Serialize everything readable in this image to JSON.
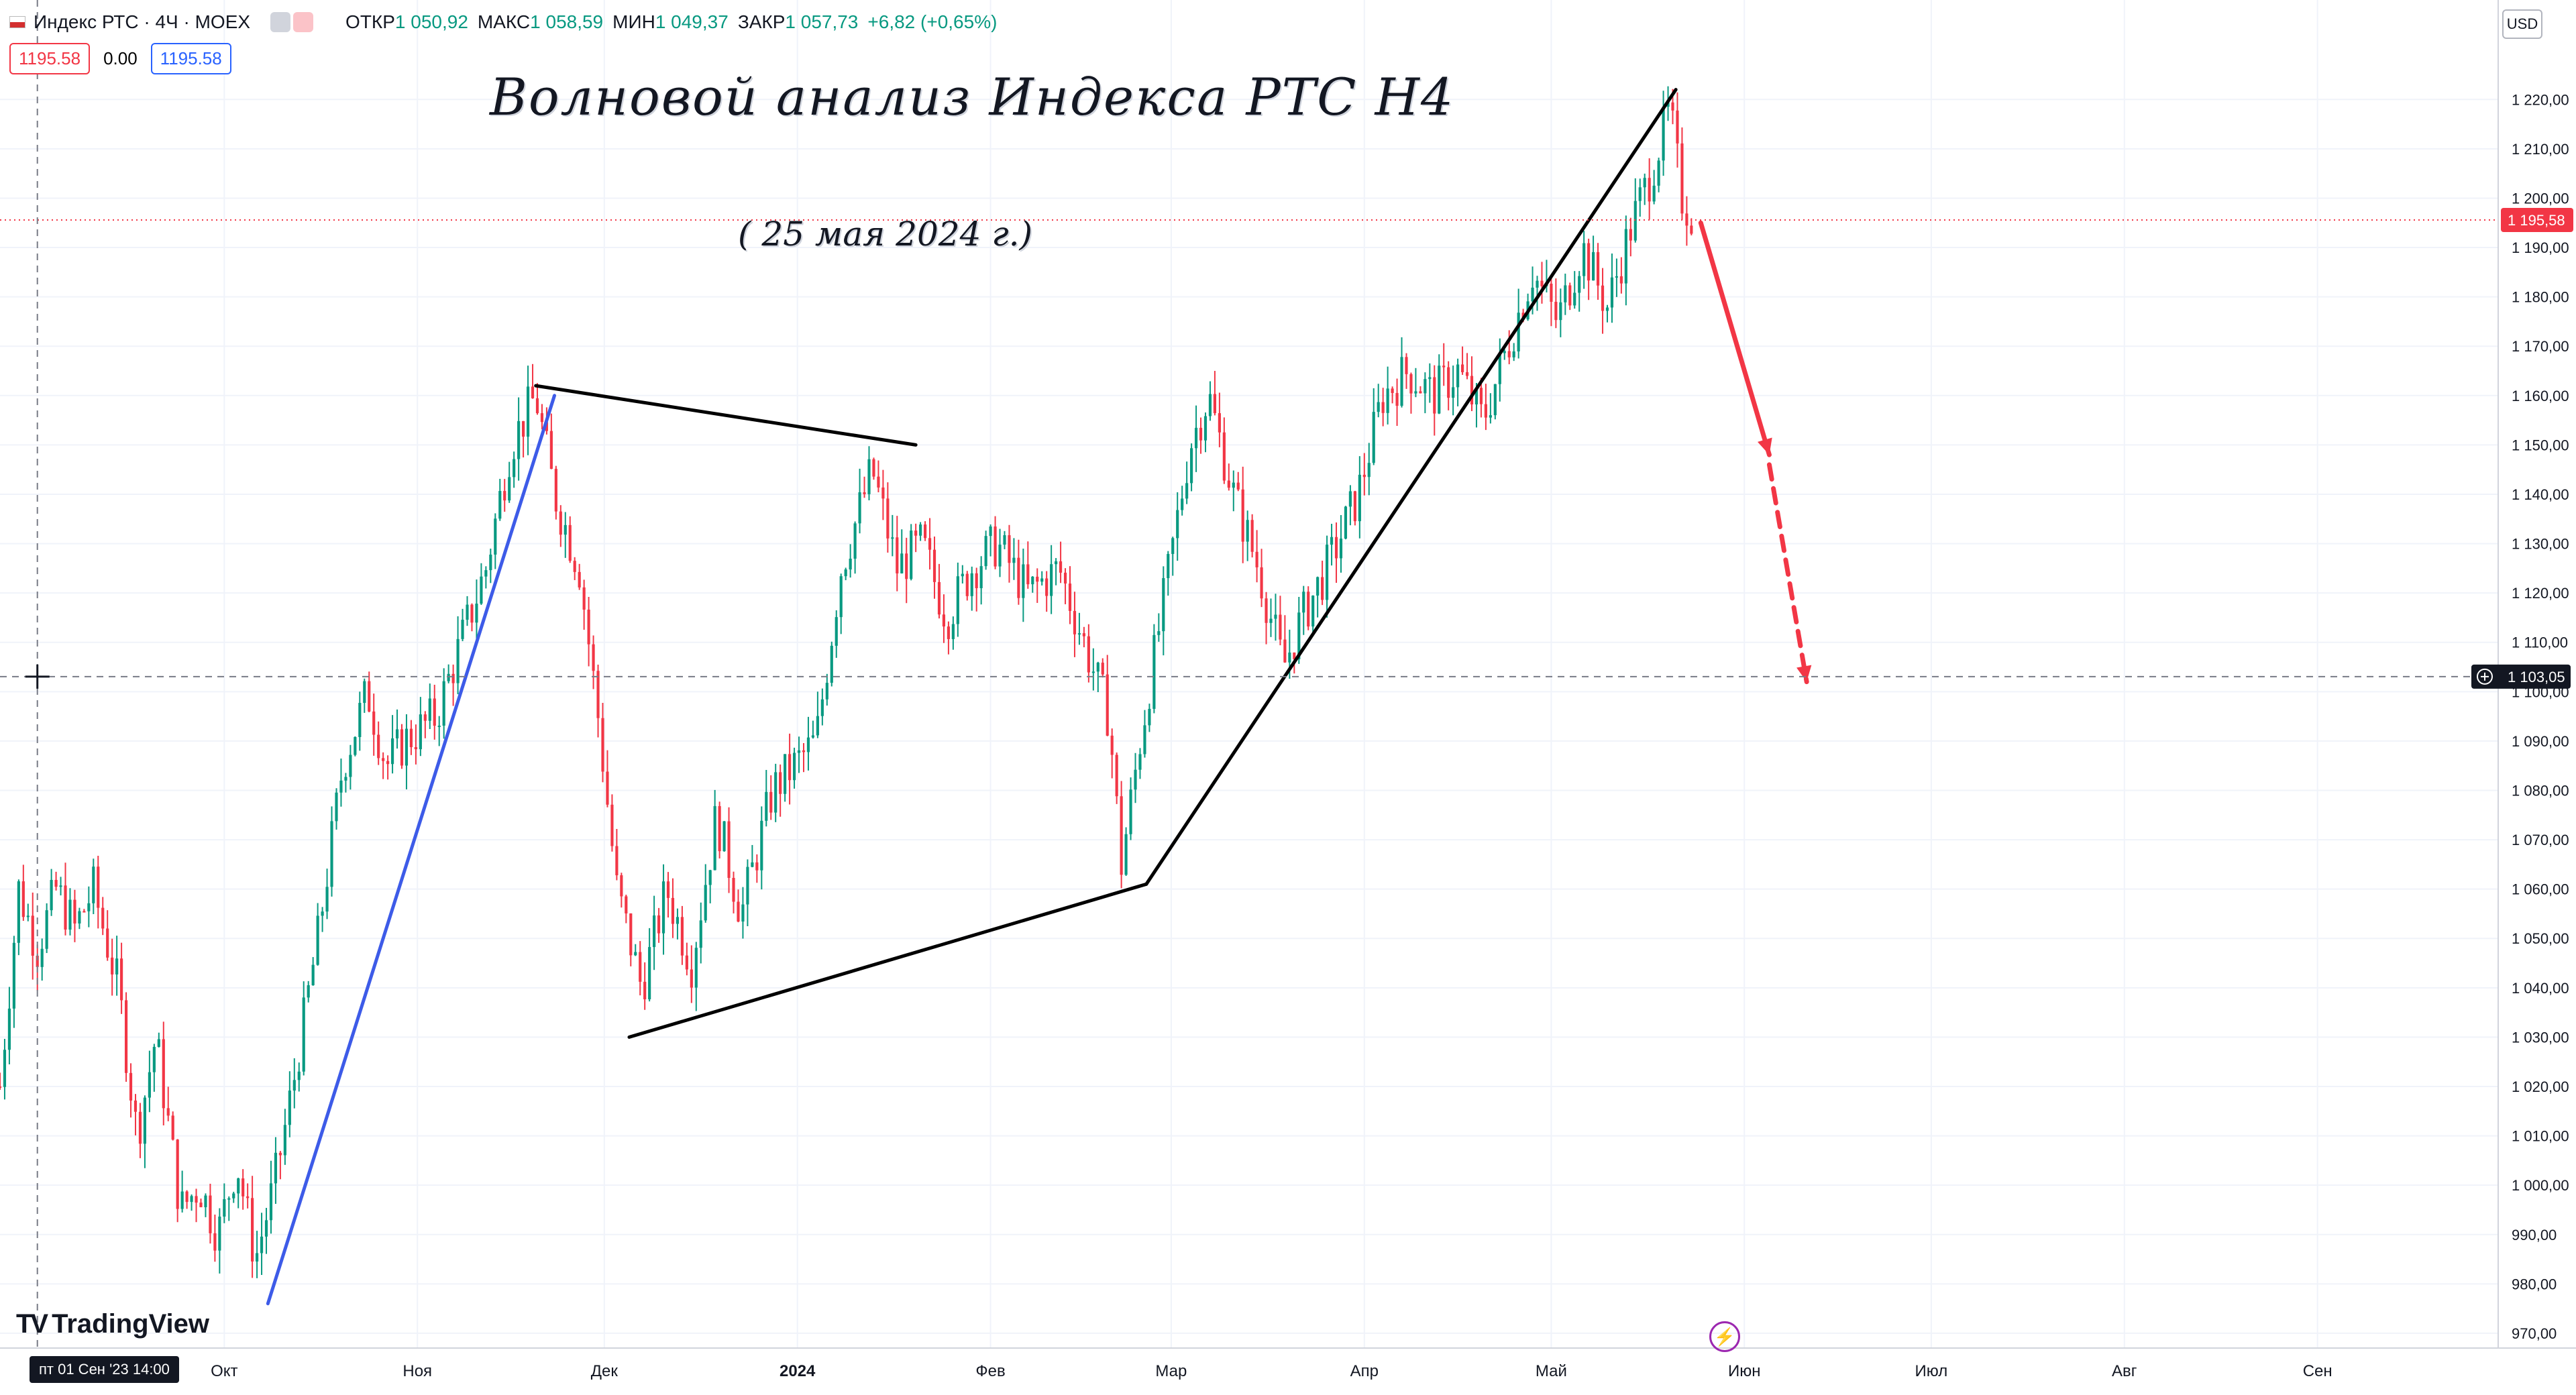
{
  "header": {
    "symbol": "Индекс РТС · 4Ч · MOEX",
    "open_label": "ОТКР",
    "open": "1 050,92",
    "high_label": "МАКС",
    "high": "1 058,59",
    "low_label": "МИН",
    "low": "1 049,37",
    "close_label": "ЗАКР",
    "close": "1 057,73",
    "change": "+6,82 (+0,65%)"
  },
  "price_boxes": {
    "sell": "1195.58",
    "spread": "0.00",
    "buy": "1195.58"
  },
  "currency": "USD",
  "annotation": {
    "title": "Волновой анализ Индекса РТС Н4",
    "date": "( 25 мая 2024 г.)"
  },
  "brand": "TradingView",
  "time_label": "пт 01 Сен '23   14:00",
  "colors": {
    "up": "#089981",
    "down": "#f23645",
    "grid": "#f0f3fa",
    "axis_text": "#131722",
    "last_price_bg": "#f23645",
    "crosshair_bg": "#131722",
    "trend_blue": "#3d5be8",
    "trend_black": "#000000",
    "forecast_red": "#f23645"
  },
  "chart_data": {
    "type": "candlestick",
    "title": "Волновой анализ Индекса РТС Н4",
    "subtitle": "( 25 мая 2024 г.)",
    "timeframe": "4H",
    "x_labels": [
      "Окт",
      "Ноя",
      "Дек",
      "2024",
      "Фев",
      "Мар",
      "Апр",
      "Май",
      "Июн",
      "Июл",
      "Авг",
      "Сен"
    ],
    "y_ticks": [
      "970,00",
      "980,00",
      "990,00",
      "1 000,00",
      "1 010,00",
      "1 020,00",
      "1 030,00",
      "1 040,00",
      "1 050,00",
      "1 060,00",
      "1 070,00",
      "1 080,00",
      "1 090,00",
      "1 100,00",
      "1 110,00",
      "1 120,00",
      "1 130,00",
      "1 140,00",
      "1 150,00",
      "1 160,00",
      "1 170,00",
      "1 180,00",
      "1 190,00",
      "1 200,00",
      "1 210,00",
      "1 220,00"
    ],
    "ylim": [
      967,
      1232
    ],
    "xlim": [
      "2023-08-26",
      "2024-09-30"
    ],
    "last_price": 1195.58,
    "last_price_label": "1 195,58",
    "crosshair_price": 1103.05,
    "crosshair_price_label": "1 103,05",
    "crosshair_time": "2023-09-01",
    "price_path": [
      [
        "2023-08-26",
        1020
      ],
      [
        "2023-08-29",
        1060
      ],
      [
        "2023-09-01",
        1048
      ],
      [
        "2023-09-04",
        1060
      ],
      [
        "2023-09-07",
        1052
      ],
      [
        "2023-09-10",
        1060
      ],
      [
        "2023-09-14",
        1040
      ],
      [
        "2023-09-17",
        1010
      ],
      [
        "2023-09-20",
        1030
      ],
      [
        "2023-09-24",
        995
      ],
      [
        "2023-09-27",
        1000
      ],
      [
        "2023-09-30",
        990
      ],
      [
        "2023-10-03",
        1005
      ],
      [
        "2023-10-06",
        985
      ],
      [
        "2023-10-09",
        1000
      ],
      [
        "2023-10-12",
        1020
      ],
      [
        "2023-10-16",
        1050
      ],
      [
        "2023-10-20",
        1085
      ],
      [
        "2023-10-24",
        1100
      ],
      [
        "2023-10-27",
        1085
      ],
      [
        "2023-10-30",
        1090
      ],
      [
        "2023-11-04",
        1095
      ],
      [
        "2023-11-08",
        1110
      ],
      [
        "2023-11-12",
        1125
      ],
      [
        "2023-11-16",
        1150
      ],
      [
        "2023-11-20",
        1160
      ],
      [
        "2023-11-23",
        1140
      ],
      [
        "2023-11-27",
        1125
      ],
      [
        "2023-11-30",
        1095
      ],
      [
        "2023-12-03",
        1060
      ],
      [
        "2023-12-07",
        1040
      ],
      [
        "2023-12-11",
        1060
      ],
      [
        "2023-12-15",
        1045
      ],
      [
        "2023-12-19",
        1075
      ],
      [
        "2023-12-23",
        1055
      ],
      [
        "2023-12-28",
        1080
      ],
      [
        "2024-01-04",
        1090
      ],
      [
        "2024-01-08",
        1125
      ],
      [
        "2024-01-13",
        1145
      ],
      [
        "2024-01-17",
        1125
      ],
      [
        "2024-01-21",
        1130
      ],
      [
        "2024-01-25",
        1115
      ],
      [
        "2024-01-29",
        1125
      ],
      [
        "2024-02-02",
        1130
      ],
      [
        "2024-02-07",
        1120
      ],
      [
        "2024-02-12",
        1125
      ],
      [
        "2024-02-16",
        1110
      ],
      [
        "2024-02-20",
        1095
      ],
      [
        "2024-02-22",
        1065
      ],
      [
        "2024-02-25",
        1090
      ],
      [
        "2024-02-29",
        1120
      ],
      [
        "2024-03-04",
        1150
      ],
      [
        "2024-03-07",
        1160
      ],
      [
        "2024-03-11",
        1140
      ],
      [
        "2024-03-15",
        1125
      ],
      [
        "2024-03-19",
        1105
      ],
      [
        "2024-03-22",
        1115
      ],
      [
        "2024-03-26",
        1125
      ],
      [
        "2024-03-31",
        1140
      ],
      [
        "2024-04-04",
        1160
      ],
      [
        "2024-04-08",
        1165
      ],
      [
        "2024-04-12",
        1160
      ],
      [
        "2024-04-16",
        1165
      ],
      [
        "2024-04-20",
        1155
      ],
      [
        "2024-04-24",
        1170
      ],
      [
        "2024-04-28",
        1185
      ],
      [
        "2024-05-02",
        1175
      ],
      [
        "2024-05-06",
        1190
      ],
      [
        "2024-05-10",
        1178
      ],
      [
        "2024-05-14",
        1195
      ],
      [
        "2024-05-17",
        1205
      ],
      [
        "2024-05-20",
        1218
      ],
      [
        "2024-05-22",
        1200
      ],
      [
        "2024-05-24",
        1195.58
      ]
    ],
    "drawings": {
      "trend_blue": [
        [
          "2023-10-08",
          976
        ],
        [
          "2023-11-23",
          1160
        ]
      ],
      "upper_line": [
        [
          "2023-11-20",
          1162
        ],
        [
          "2024-01-20",
          1150
        ]
      ],
      "lower_line": [
        [
          "2023-12-05",
          1030
        ],
        [
          "2024-02-26",
          1061
        ]
      ],
      "rising_line": [
        [
          "2024-02-26",
          1061
        ],
        [
          "2024-05-21",
          1222
        ]
      ],
      "forecast_solid": [
        [
          "2024-05-25",
          1195
        ],
        [
          "2024-06-05",
          1148
        ]
      ],
      "forecast_dashed": [
        [
          "2024-06-05",
          1146
        ],
        [
          "2024-06-11",
          1102
        ]
      ]
    }
  }
}
